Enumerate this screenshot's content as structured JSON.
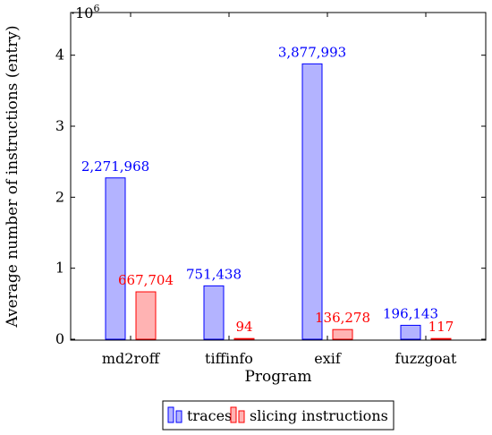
{
  "chart_data": {
    "type": "bar",
    "categories": [
      "md2roff",
      "tiffinfo",
      "exif",
      "fuzzgoat"
    ],
    "series": [
      {
        "name": "traces",
        "values": [
          2271968,
          751438,
          3877993,
          196143
        ],
        "labels": [
          "2,271,968",
          "751,438",
          "3,877,993",
          "196,143"
        ],
        "fill": "#b3b3ff",
        "stroke": "#0000ff",
        "label_color": "#0000ff"
      },
      {
        "name": "slicing instructions",
        "values": [
          667704,
          94,
          136278,
          117
        ],
        "labels": [
          "667,704",
          "94",
          "136,278",
          "117"
        ],
        "fill": "#ffb3b3",
        "stroke": "#ff0000",
        "label_color": "#ff0000"
      }
    ],
    "xlabel": "Program",
    "ylabel": "Average number of instructions (entry)",
    "ylim": [
      0,
      4500000
    ],
    "yticks": [
      0,
      1000000,
      2000000,
      3000000,
      4000000
    ],
    "ytick_labels": [
      "0",
      "1",
      "2",
      "3",
      "4"
    ],
    "scale_label": "·10",
    "scale_exponent": "6",
    "grid": false,
    "legend_position": "below"
  }
}
